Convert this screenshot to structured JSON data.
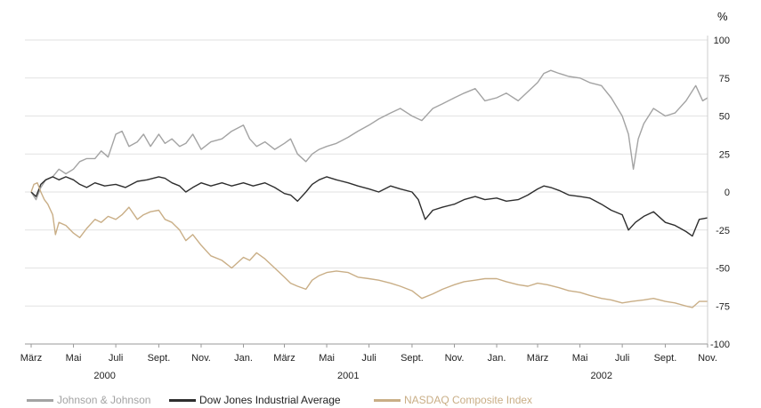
{
  "chart_data": {
    "type": "line",
    "unit": "%",
    "ylim": [
      -100,
      100
    ],
    "yticks": [
      100,
      75,
      50,
      25,
      0,
      -25,
      -50,
      -75,
      -100
    ],
    "ytick_labels": [
      "100",
      "75",
      "50",
      "25",
      "0",
      "-25",
      "-50",
      "-75",
      "-100"
    ],
    "xlim": [
      "2000-03-01",
      "2002-11-01"
    ],
    "month_ticks": [
      {
        "date": "2000-03-01",
        "label": "März"
      },
      {
        "date": "2000-05-01",
        "label": "Mai"
      },
      {
        "date": "2000-07-01",
        "label": "Juli"
      },
      {
        "date": "2000-09-01",
        "label": "Sept."
      },
      {
        "date": "2000-11-01",
        "label": "Nov."
      },
      {
        "date": "2001-01-01",
        "label": "Jan."
      },
      {
        "date": "2001-03-01",
        "label": "März"
      },
      {
        "date": "2001-05-01",
        "label": "Mai"
      },
      {
        "date": "2001-07-01",
        "label": "Juli"
      },
      {
        "date": "2001-09-01",
        "label": "Sept."
      },
      {
        "date": "2001-11-01",
        "label": "Nov."
      },
      {
        "date": "2002-01-01",
        "label": "Jan."
      },
      {
        "date": "2002-03-01",
        "label": "März"
      },
      {
        "date": "2002-05-01",
        "label": "Mai"
      },
      {
        "date": "2002-07-01",
        "label": "Juli"
      },
      {
        "date": "2002-09-01",
        "label": "Sept."
      },
      {
        "date": "2002-11-01",
        "label": "Nov."
      }
    ],
    "year_labels": [
      {
        "date": "2000-06-15",
        "label": "2000"
      },
      {
        "date": "2001-06-01",
        "label": "2001"
      },
      {
        "date": "2002-06-01",
        "label": "2002"
      }
    ],
    "grid": true,
    "legend_position": "bottom-left",
    "series": [
      {
        "name": "Johnson & Johnson",
        "color": "#a3a3a3",
        "points": [
          [
            "2000-03-01",
            0
          ],
          [
            "2000-03-08",
            -5
          ],
          [
            "2000-03-15",
            3
          ],
          [
            "2000-03-22",
            8
          ],
          [
            "2000-04-01",
            10
          ],
          [
            "2000-04-10",
            15
          ],
          [
            "2000-04-20",
            12
          ],
          [
            "2000-05-01",
            15
          ],
          [
            "2000-05-10",
            20
          ],
          [
            "2000-05-20",
            22
          ],
          [
            "2000-06-01",
            22
          ],
          [
            "2000-06-10",
            27
          ],
          [
            "2000-06-20",
            23
          ],
          [
            "2000-07-01",
            38
          ],
          [
            "2000-07-10",
            40
          ],
          [
            "2000-07-20",
            30
          ],
          [
            "2000-08-01",
            33
          ],
          [
            "2000-08-10",
            38
          ],
          [
            "2000-08-20",
            30
          ],
          [
            "2000-09-01",
            38
          ],
          [
            "2000-09-10",
            32
          ],
          [
            "2000-09-20",
            35
          ],
          [
            "2000-10-01",
            30
          ],
          [
            "2000-10-10",
            32
          ],
          [
            "2000-10-20",
            38
          ],
          [
            "2000-11-01",
            28
          ],
          [
            "2000-11-15",
            33
          ],
          [
            "2000-12-01",
            35
          ],
          [
            "2000-12-15",
            40
          ],
          [
            "2001-01-01",
            44
          ],
          [
            "2001-01-10",
            35
          ],
          [
            "2001-01-20",
            30
          ],
          [
            "2001-02-01",
            33
          ],
          [
            "2001-02-15",
            28
          ],
          [
            "2001-03-01",
            32
          ],
          [
            "2001-03-10",
            35
          ],
          [
            "2001-03-20",
            25
          ],
          [
            "2001-04-01",
            20
          ],
          [
            "2001-04-10",
            25
          ],
          [
            "2001-04-20",
            28
          ],
          [
            "2001-05-01",
            30
          ],
          [
            "2001-05-15",
            32
          ],
          [
            "2001-06-01",
            36
          ],
          [
            "2001-06-15",
            40
          ],
          [
            "2001-07-01",
            44
          ],
          [
            "2001-07-15",
            48
          ],
          [
            "2001-08-01",
            52
          ],
          [
            "2001-08-15",
            55
          ],
          [
            "2001-09-01",
            50
          ],
          [
            "2001-09-15",
            47
          ],
          [
            "2001-10-01",
            55
          ],
          [
            "2001-10-15",
            58
          ],
          [
            "2001-11-01",
            62
          ],
          [
            "2001-11-15",
            65
          ],
          [
            "2001-12-01",
            68
          ],
          [
            "2001-12-15",
            60
          ],
          [
            "2002-01-01",
            62
          ],
          [
            "2002-01-15",
            65
          ],
          [
            "2002-02-01",
            60
          ],
          [
            "2002-02-15",
            66
          ],
          [
            "2002-03-01",
            72
          ],
          [
            "2002-03-10",
            78
          ],
          [
            "2002-03-20",
            80
          ],
          [
            "2002-04-01",
            78
          ],
          [
            "2002-04-15",
            76
          ],
          [
            "2002-05-01",
            75
          ],
          [
            "2002-05-15",
            72
          ],
          [
            "2002-06-01",
            70
          ],
          [
            "2002-06-15",
            62
          ],
          [
            "2002-07-01",
            50
          ],
          [
            "2002-07-10",
            38
          ],
          [
            "2002-07-17",
            15
          ],
          [
            "2002-07-24",
            35
          ],
          [
            "2002-08-01",
            45
          ],
          [
            "2002-08-15",
            55
          ],
          [
            "2002-09-01",
            50
          ],
          [
            "2002-09-15",
            52
          ],
          [
            "2002-10-01",
            60
          ],
          [
            "2002-10-15",
            70
          ],
          [
            "2002-10-25",
            60
          ],
          [
            "2002-11-01",
            62
          ]
        ]
      },
      {
        "name": "Dow Jones Industrial Average",
        "color": "#2e2e2e",
        "points": [
          [
            "2000-03-01",
            0
          ],
          [
            "2000-03-08",
            -3
          ],
          [
            "2000-03-15",
            5
          ],
          [
            "2000-03-22",
            8
          ],
          [
            "2000-04-01",
            10
          ],
          [
            "2000-04-10",
            8
          ],
          [
            "2000-04-20",
            10
          ],
          [
            "2000-05-01",
            8
          ],
          [
            "2000-05-10",
            5
          ],
          [
            "2000-05-20",
            3
          ],
          [
            "2000-06-01",
            6
          ],
          [
            "2000-06-15",
            4
          ],
          [
            "2000-07-01",
            5
          ],
          [
            "2000-07-15",
            3
          ],
          [
            "2000-08-01",
            7
          ],
          [
            "2000-08-15",
            8
          ],
          [
            "2000-09-01",
            10
          ],
          [
            "2000-09-10",
            9
          ],
          [
            "2000-09-20",
            6
          ],
          [
            "2000-10-01",
            4
          ],
          [
            "2000-10-10",
            0
          ],
          [
            "2000-10-20",
            3
          ],
          [
            "2000-11-01",
            6
          ],
          [
            "2000-11-15",
            4
          ],
          [
            "2000-12-01",
            6
          ],
          [
            "2000-12-15",
            4
          ],
          [
            "2001-01-01",
            6
          ],
          [
            "2001-01-15",
            4
          ],
          [
            "2001-02-01",
            6
          ],
          [
            "2001-02-15",
            3
          ],
          [
            "2001-03-01",
            -1
          ],
          [
            "2001-03-10",
            -2
          ],
          [
            "2001-03-20",
            -6
          ],
          [
            "2001-04-01",
            0
          ],
          [
            "2001-04-10",
            5
          ],
          [
            "2001-04-20",
            8
          ],
          [
            "2001-05-01",
            10
          ],
          [
            "2001-05-15",
            8
          ],
          [
            "2001-06-01",
            6
          ],
          [
            "2001-06-15",
            4
          ],
          [
            "2001-07-01",
            2
          ],
          [
            "2001-07-15",
            0
          ],
          [
            "2001-08-01",
            4
          ],
          [
            "2001-08-15",
            2
          ],
          [
            "2001-09-01",
            0
          ],
          [
            "2001-09-10",
            -5
          ],
          [
            "2001-09-20",
            -18
          ],
          [
            "2001-10-01",
            -12
          ],
          [
            "2001-10-15",
            -10
          ],
          [
            "2001-11-01",
            -8
          ],
          [
            "2001-11-15",
            -5
          ],
          [
            "2001-12-01",
            -3
          ],
          [
            "2001-12-15",
            -5
          ],
          [
            "2002-01-01",
            -4
          ],
          [
            "2002-01-15",
            -6
          ],
          [
            "2002-02-01",
            -5
          ],
          [
            "2002-02-15",
            -2
          ],
          [
            "2002-03-01",
            2
          ],
          [
            "2002-03-10",
            4
          ],
          [
            "2002-03-20",
            3
          ],
          [
            "2002-04-01",
            1
          ],
          [
            "2002-04-15",
            -2
          ],
          [
            "2002-05-01",
            -3
          ],
          [
            "2002-05-15",
            -4
          ],
          [
            "2002-06-01",
            -8
          ],
          [
            "2002-06-15",
            -12
          ],
          [
            "2002-07-01",
            -15
          ],
          [
            "2002-07-10",
            -25
          ],
          [
            "2002-07-20",
            -20
          ],
          [
            "2002-08-01",
            -16
          ],
          [
            "2002-08-15",
            -13
          ],
          [
            "2002-09-01",
            -20
          ],
          [
            "2002-09-15",
            -22
          ],
          [
            "2002-10-01",
            -26
          ],
          [
            "2002-10-10",
            -29
          ],
          [
            "2002-10-20",
            -18
          ],
          [
            "2002-11-01",
            -17
          ]
        ]
      },
      {
        "name": "NASDAQ Composite Index",
        "color": "#c9ae86",
        "points": [
          [
            "2000-03-01",
            0
          ],
          [
            "2000-03-05",
            5
          ],
          [
            "2000-03-10",
            6
          ],
          [
            "2000-03-15",
            0
          ],
          [
            "2000-03-20",
            -5
          ],
          [
            "2000-03-25",
            -8
          ],
          [
            "2000-04-01",
            -15
          ],
          [
            "2000-04-05",
            -28
          ],
          [
            "2000-04-10",
            -20
          ],
          [
            "2000-04-20",
            -22
          ],
          [
            "2000-05-01",
            -27
          ],
          [
            "2000-05-10",
            -30
          ],
          [
            "2000-05-20",
            -24
          ],
          [
            "2000-06-01",
            -18
          ],
          [
            "2000-06-10",
            -20
          ],
          [
            "2000-06-20",
            -16
          ],
          [
            "2000-07-01",
            -18
          ],
          [
            "2000-07-10",
            -15
          ],
          [
            "2000-07-20",
            -10
          ],
          [
            "2000-08-01",
            -18
          ],
          [
            "2000-08-10",
            -15
          ],
          [
            "2000-08-20",
            -13
          ],
          [
            "2000-09-01",
            -12
          ],
          [
            "2000-09-10",
            -18
          ],
          [
            "2000-09-20",
            -20
          ],
          [
            "2000-10-01",
            -25
          ],
          [
            "2000-10-10",
            -32
          ],
          [
            "2000-10-20",
            -28
          ],
          [
            "2000-11-01",
            -35
          ],
          [
            "2000-11-15",
            -42
          ],
          [
            "2000-12-01",
            -45
          ],
          [
            "2000-12-15",
            -50
          ],
          [
            "2001-01-01",
            -43
          ],
          [
            "2001-01-10",
            -45
          ],
          [
            "2001-01-20",
            -40
          ],
          [
            "2001-02-01",
            -44
          ],
          [
            "2001-02-15",
            -50
          ],
          [
            "2001-03-01",
            -56
          ],
          [
            "2001-03-10",
            -60
          ],
          [
            "2001-03-20",
            -62
          ],
          [
            "2001-04-01",
            -64
          ],
          [
            "2001-04-10",
            -58
          ],
          [
            "2001-04-20",
            -55
          ],
          [
            "2001-05-01",
            -53
          ],
          [
            "2001-05-15",
            -52
          ],
          [
            "2001-06-01",
            -53
          ],
          [
            "2001-06-15",
            -56
          ],
          [
            "2001-07-01",
            -57
          ],
          [
            "2001-07-15",
            -58
          ],
          [
            "2001-08-01",
            -60
          ],
          [
            "2001-08-15",
            -62
          ],
          [
            "2001-09-01",
            -65
          ],
          [
            "2001-09-15",
            -70
          ],
          [
            "2001-10-01",
            -67
          ],
          [
            "2001-10-15",
            -64
          ],
          [
            "2001-11-01",
            -61
          ],
          [
            "2001-11-15",
            -59
          ],
          [
            "2001-12-01",
            -58
          ],
          [
            "2001-12-15",
            -57
          ],
          [
            "2002-01-01",
            -57
          ],
          [
            "2002-01-15",
            -59
          ],
          [
            "2002-02-01",
            -61
          ],
          [
            "2002-02-15",
            -62
          ],
          [
            "2002-03-01",
            -60
          ],
          [
            "2002-03-15",
            -61
          ],
          [
            "2002-04-01",
            -63
          ],
          [
            "2002-04-15",
            -65
          ],
          [
            "2002-05-01",
            -66
          ],
          [
            "2002-05-15",
            -68
          ],
          [
            "2002-06-01",
            -70
          ],
          [
            "2002-06-15",
            -71
          ],
          [
            "2002-07-01",
            -73
          ],
          [
            "2002-07-15",
            -72
          ],
          [
            "2002-08-01",
            -71
          ],
          [
            "2002-08-15",
            -70
          ],
          [
            "2002-09-01",
            -72
          ],
          [
            "2002-09-15",
            -73
          ],
          [
            "2002-10-01",
            -75
          ],
          [
            "2002-10-10",
            -76
          ],
          [
            "2002-10-20",
            -72
          ],
          [
            "2002-11-01",
            -72
          ]
        ]
      }
    ]
  }
}
